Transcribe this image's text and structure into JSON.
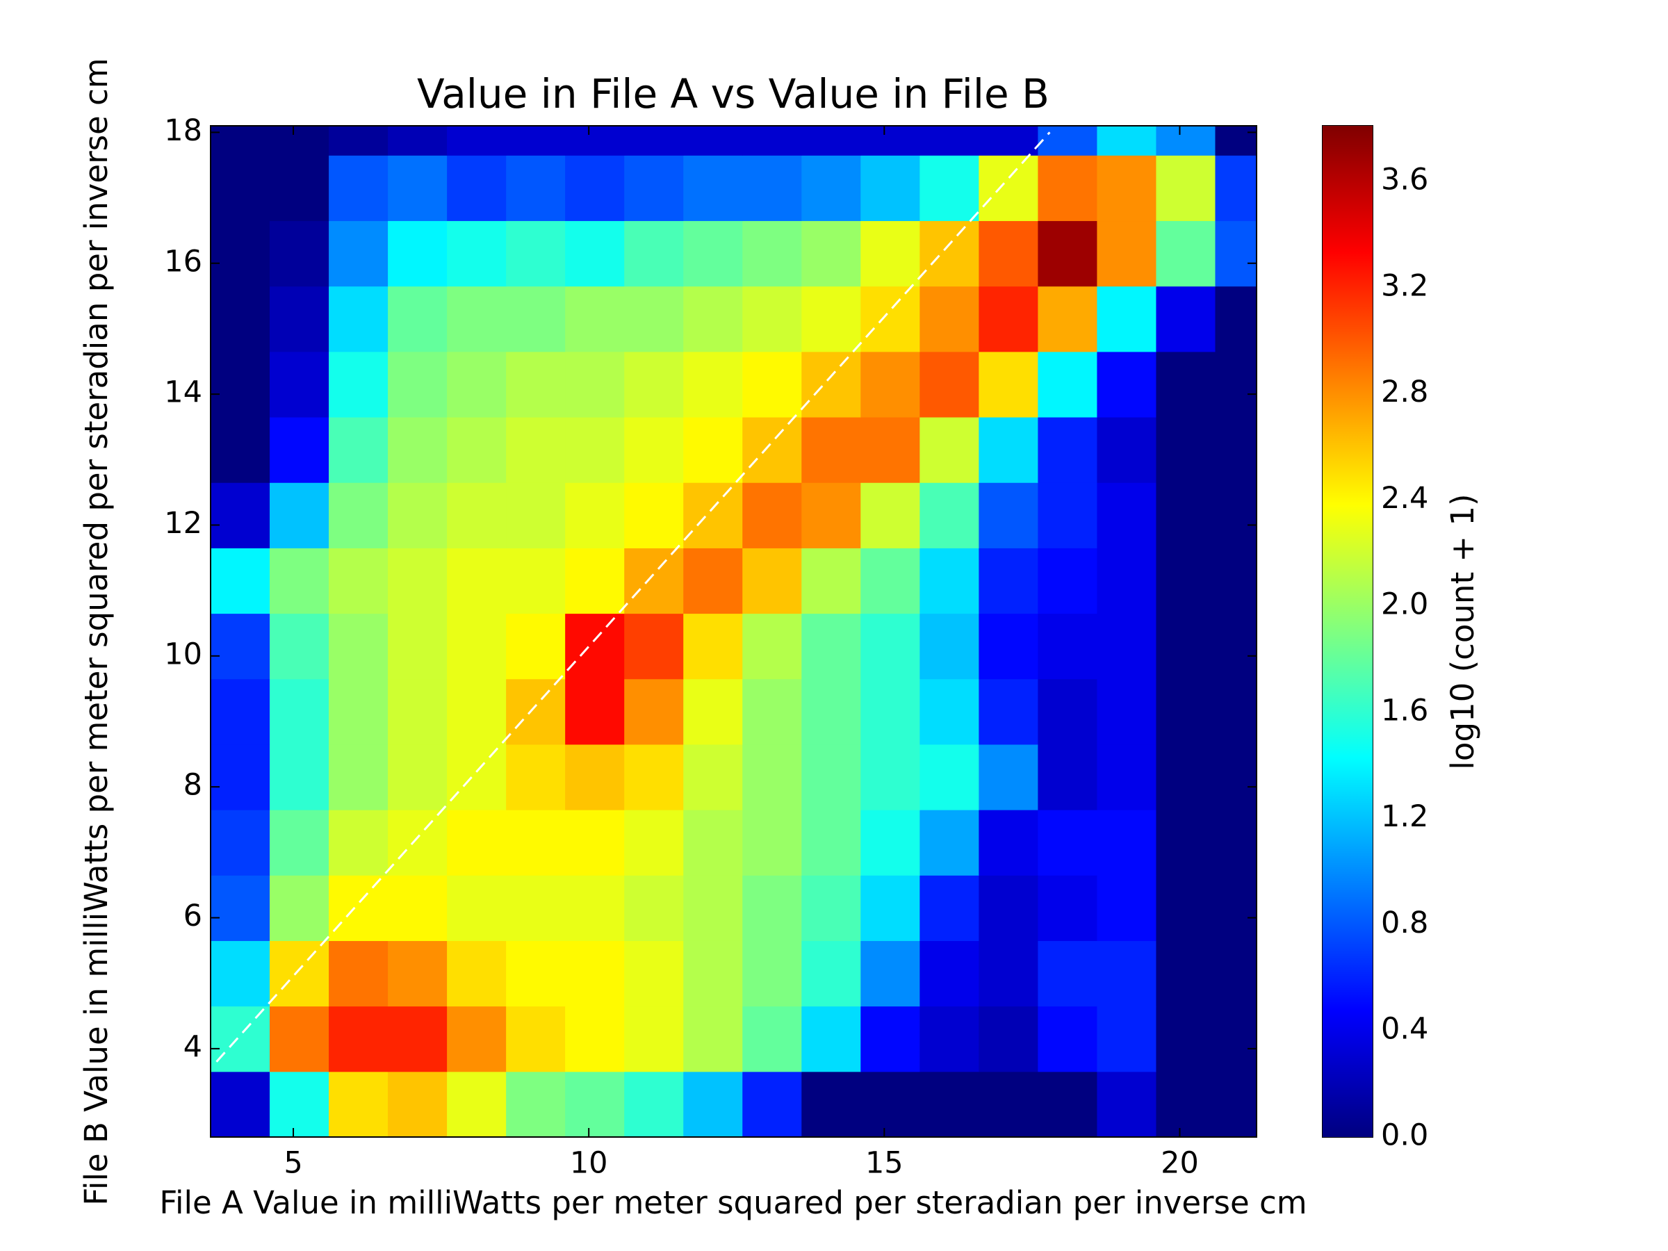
{
  "chart_data": {
    "type": "hexbin",
    "title": "Value in File A vs Value in File B",
    "xlabel": "File A Value in milliWatts per meter squared per steradian per inverse cm",
    "ylabel": "File B Value in milliWatts per meter squared per steradian per inverse cm",
    "xlim": [
      3.6,
      21.3
    ],
    "ylim": [
      2.65,
      18.1
    ],
    "xticks": [
      5,
      10,
      15,
      20
    ],
    "yticks": [
      4,
      6,
      8,
      10,
      12,
      14,
      16,
      18
    ],
    "xbins": [
      3.6,
      4.6,
      5.6,
      6.6,
      7.6,
      8.6,
      9.6,
      10.6,
      11.6,
      12.6,
      13.6,
      14.6,
      15.6,
      16.6,
      17.6,
      18.6,
      19.6,
      20.6,
      21.6
    ],
    "ybins": [
      2.65,
      3.65,
      4.65,
      5.65,
      6.65,
      7.65,
      8.65,
      9.65,
      10.65,
      11.65,
      12.65,
      13.65,
      14.65,
      15.65,
      16.65,
      17.65,
      18.65
    ],
    "values": [
      [
        0.3,
        1.5,
        2.5,
        2.6,
        2.3,
        1.9,
        1.8,
        1.6,
        1.2,
        0.6,
        0,
        0,
        0,
        0,
        0,
        0.3,
        0,
        0
      ],
      [
        1.6,
        2.9,
        3.2,
        3.2,
        2.8,
        2.5,
        2.4,
        2.3,
        2.1,
        1.8,
        1.3,
        0.5,
        0.3,
        0.2,
        0.5,
        0.6,
        0,
        0
      ],
      [
        1.3,
        2.5,
        2.9,
        2.8,
        2.5,
        2.4,
        2.4,
        2.3,
        2.1,
        1.9,
        1.6,
        1.0,
        0.4,
        0.3,
        0.6,
        0.6,
        0,
        0
      ],
      [
        0.8,
        2.0,
        2.4,
        2.4,
        2.3,
        2.3,
        2.3,
        2.2,
        2.1,
        1.9,
        1.7,
        1.3,
        0.6,
        0.3,
        0.4,
        0.5,
        0,
        0
      ],
      [
        0.7,
        1.8,
        2.2,
        2.3,
        2.4,
        2.4,
        2.4,
        2.3,
        2.1,
        2.0,
        1.8,
        1.5,
        1.1,
        0.4,
        0.5,
        0.5,
        0,
        0
      ],
      [
        0.6,
        1.6,
        2.0,
        2.2,
        2.3,
        2.5,
        2.6,
        2.5,
        2.2,
        2.0,
        1.8,
        1.6,
        1.5,
        1.0,
        0.3,
        0.4,
        0,
        0
      ],
      [
        0.6,
        1.6,
        2.0,
        2.2,
        2.3,
        2.6,
        3.3,
        2.8,
        2.3,
        2.0,
        1.8,
        1.6,
        1.3,
        0.6,
        0.3,
        0.4,
        0,
        0
      ],
      [
        0.7,
        1.7,
        2.0,
        2.2,
        2.3,
        2.4,
        3.3,
        3.1,
        2.5,
        2.1,
        1.8,
        1.6,
        1.2,
        0.5,
        0.4,
        0.4,
        0,
        0
      ],
      [
        1.4,
        1.9,
        2.1,
        2.2,
        2.3,
        2.3,
        2.4,
        2.7,
        2.9,
        2.6,
        2.1,
        1.8,
        1.3,
        0.6,
        0.5,
        0.4,
        0,
        0
      ],
      [
        0.3,
        1.2,
        1.9,
        2.1,
        2.2,
        2.2,
        2.3,
        2.4,
        2.6,
        2.9,
        2.8,
        2.2,
        1.7,
        0.8,
        0.6,
        0.4,
        0,
        0
      ],
      [
        0,
        0.5,
        1.7,
        2.0,
        2.1,
        2.2,
        2.2,
        2.3,
        2.4,
        2.6,
        2.9,
        2.9,
        2.2,
        1.3,
        0.6,
        0.3,
        0,
        0
      ],
      [
        0,
        0.3,
        1.5,
        1.9,
        2.0,
        2.1,
        2.1,
        2.2,
        2.3,
        2.4,
        2.6,
        2.8,
        3.0,
        2.5,
        1.4,
        0.5,
        0,
        0
      ],
      [
        0,
        0.2,
        1.3,
        1.8,
        1.9,
        1.9,
        2.0,
        2.0,
        2.1,
        2.2,
        2.3,
        2.5,
        2.8,
        3.2,
        2.7,
        1.4,
        0.4,
        0
      ],
      [
        0,
        0.1,
        1.0,
        1.4,
        1.5,
        1.6,
        1.5,
        1.7,
        1.8,
        1.9,
        2.0,
        2.3,
        2.6,
        3.0,
        3.7,
        2.8,
        1.8,
        0.8
      ],
      [
        0,
        0,
        0.8,
        0.9,
        0.7,
        0.8,
        0.7,
        0.8,
        0.9,
        0.9,
        1.0,
        1.2,
        1.5,
        2.3,
        2.9,
        2.8,
        2.2,
        0.7
      ],
      [
        0,
        0,
        0.1,
        0.2,
        0.3,
        0.3,
        0.3,
        0.3,
        0.3,
        0.3,
        0.3,
        0.3,
        0.3,
        0.3,
        0.8,
        1.3,
        1.0,
        0
      ]
    ],
    "colormap": "jet",
    "clim": [
      0,
      3.81
    ],
    "colorbar": {
      "label": "log10 (count + 1)",
      "ticks": [
        {
          "value": 0,
          "label": "0.0"
        },
        0.4,
        0.8,
        1.2,
        1.6,
        {
          "value": 2,
          "label": "2.0"
        },
        2.4,
        2.8,
        3.2,
        3.6
      ]
    },
    "reference_line": {
      "x": [
        3.7,
        17.8
      ],
      "y": [
        3.8,
        18.0
      ],
      "color": "#ffffff",
      "style": "dashed"
    }
  }
}
